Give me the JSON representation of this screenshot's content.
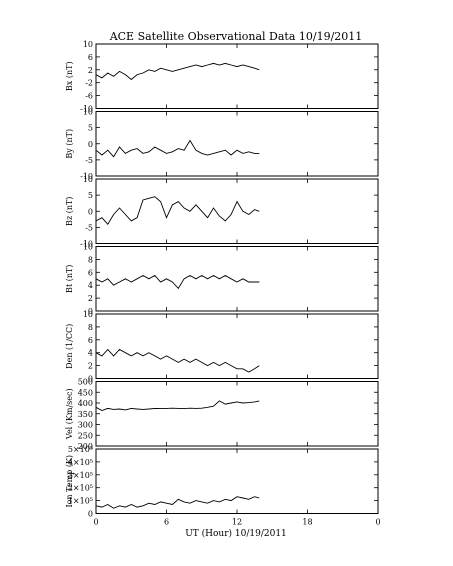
{
  "chart_data": {
    "title": "ACE Satellite Observational Data   10/19/2011",
    "xlabel": "UT (Hour)   10/19/2011",
    "x_ticks": [
      "0",
      "6",
      "12",
      "18",
      "0"
    ],
    "x_range": [
      0,
      24
    ],
    "panels": [
      {
        "type": "line",
        "ylabel": "Bx (nT)",
        "ylim": [
          -10,
          10
        ],
        "yticks": [
          "10",
          "6",
          "2",
          "-2",
          "-6",
          "-10"
        ],
        "ytick_values": [
          10,
          6,
          2,
          -2,
          -6,
          -10
        ],
        "x": [
          0,
          0.5,
          1,
          1.5,
          2,
          2.5,
          3,
          3.5,
          4,
          4.5,
          5,
          5.5,
          6,
          6.5,
          7,
          7.5,
          8,
          8.5,
          9,
          9.5,
          10,
          10.5,
          11,
          11.5,
          12,
          12.5,
          13,
          13.5,
          13.9
        ],
        "values": [
          0.5,
          -0.5,
          1,
          0,
          1.5,
          0.5,
          -1,
          0.5,
          1,
          2,
          1.5,
          2.5,
          2,
          1.5,
          2,
          2.5,
          3,
          3.5,
          3,
          3.5,
          4,
          3.5,
          4,
          3.5,
          3,
          3.5,
          3,
          2.5,
          2
        ]
      },
      {
        "type": "line",
        "ylabel": "By (nT)",
        "ylim": [
          -10,
          10
        ],
        "yticks": [
          "10",
          "5",
          "0",
          "-5",
          "-10"
        ],
        "ytick_values": [
          10,
          5,
          0,
          -5,
          -10
        ],
        "x": [
          0,
          0.5,
          1,
          1.5,
          2,
          2.5,
          3,
          3.5,
          4,
          4.5,
          5,
          5.5,
          6,
          6.5,
          7,
          7.5,
          8,
          8.5,
          9,
          9.5,
          10,
          10.5,
          11,
          11.5,
          12,
          12.5,
          13,
          13.5,
          13.9
        ],
        "values": [
          -2,
          -3.5,
          -2,
          -4,
          -1,
          -3,
          -2,
          -1.5,
          -3,
          -2.5,
          -1,
          -2,
          -3,
          -2.5,
          -1.5,
          -2,
          1,
          -2,
          -3,
          -3.5,
          -3,
          -2.5,
          -2,
          -3.5,
          -2,
          -3,
          -2.5,
          -3,
          -3
        ]
      },
      {
        "type": "line",
        "ylabel": "Bz (nT)",
        "ylim": [
          -10,
          10
        ],
        "yticks": [
          "10",
          "5",
          "0",
          "-5",
          "-10"
        ],
        "ytick_values": [
          10,
          5,
          0,
          -5,
          -10
        ],
        "x": [
          0,
          0.5,
          1,
          1.5,
          2,
          2.5,
          3,
          3.5,
          4,
          4.5,
          5,
          5.5,
          6,
          6.5,
          7,
          7.5,
          8,
          8.5,
          9,
          9.5,
          10,
          10.5,
          11,
          11.5,
          12,
          12.5,
          13,
          13.5,
          13.9
        ],
        "values": [
          -3,
          -2,
          -4,
          -1,
          1,
          -1,
          -3,
          -2,
          3.5,
          4,
          4.5,
          3,
          -2,
          2,
          3,
          1,
          0,
          2,
          0,
          -2,
          1,
          -1.5,
          -3,
          -1,
          3,
          0,
          -1,
          0.5,
          0
        ]
      },
      {
        "type": "line",
        "ylabel": "Bt (nT)",
        "ylim": [
          0,
          10
        ],
        "yticks": [
          "10",
          "8",
          "6",
          "4",
          "2",
          "0"
        ],
        "ytick_values": [
          10,
          8,
          6,
          4,
          2,
          0
        ],
        "x": [
          0,
          0.5,
          1,
          1.5,
          2,
          2.5,
          3,
          3.5,
          4,
          4.5,
          5,
          5.5,
          6,
          6.5,
          7,
          7.5,
          8,
          8.5,
          9,
          9.5,
          10,
          10.5,
          11,
          11.5,
          12,
          12.5,
          13,
          13.5,
          13.9
        ],
        "values": [
          5,
          4.5,
          5,
          4,
          4.5,
          5,
          4.5,
          5,
          5.5,
          5,
          5.5,
          4.5,
          5,
          4.5,
          3.5,
          5,
          5.5,
          5,
          5.5,
          5,
          5.5,
          5,
          5.5,
          5,
          4.5,
          5,
          4.5,
          4.5,
          4.5
        ]
      },
      {
        "type": "line",
        "ylabel": "Den (1/CC)",
        "ylim": [
          0,
          10
        ],
        "yticks": [
          "10",
          "8",
          "6",
          "4",
          "2",
          "0"
        ],
        "ytick_values": [
          10,
          8,
          6,
          4,
          2,
          0
        ],
        "x": [
          0,
          0.5,
          1,
          1.5,
          2,
          2.5,
          3,
          3.5,
          4,
          4.5,
          5,
          5.5,
          6,
          6.5,
          7,
          7.5,
          8,
          8.5,
          9,
          9.5,
          10,
          10.5,
          11,
          11.5,
          12,
          12.5,
          13,
          13.5,
          13.9
        ],
        "values": [
          4,
          3.5,
          4.5,
          3.5,
          4.5,
          4,
          3.5,
          4,
          3.5,
          4,
          3.5,
          3,
          3.5,
          3,
          2.5,
          3,
          2.5,
          3,
          2.5,
          2,
          2.5,
          2,
          2.5,
          2,
          1.5,
          1.5,
          1,
          1.5,
          2
        ]
      },
      {
        "type": "line",
        "ylabel": "Vel (Km/sec)",
        "ylim": [
          200,
          500
        ],
        "yticks": [
          "500",
          "450",
          "400",
          "350",
          "300",
          "250",
          "200"
        ],
        "ytick_values": [
          500,
          450,
          400,
          350,
          300,
          250,
          200
        ],
        "x": [
          0,
          0.5,
          1,
          1.5,
          2,
          2.5,
          3,
          3.5,
          4,
          4.5,
          5,
          5.5,
          6,
          6.5,
          7,
          7.5,
          8,
          8.5,
          9,
          9.5,
          10,
          10.5,
          11,
          11.5,
          12,
          12.5,
          13,
          13.5,
          13.9
        ],
        "values": [
          380,
          365,
          375,
          370,
          372,
          368,
          375,
          372,
          370,
          372,
          375,
          374,
          375,
          376,
          375,
          374,
          376,
          375,
          376,
          380,
          385,
          410,
          395,
          400,
          405,
          400,
          402,
          405,
          410
        ]
      },
      {
        "type": "line",
        "ylabel": "Ion Temp (K)",
        "ylim": [
          0,
          500000
        ],
        "yticks": [
          "5×10⁵",
          "4×10⁵",
          "3×10⁵",
          "2×10⁵",
          "1×10⁵",
          "0"
        ],
        "ytick_values": [
          500000,
          400000,
          300000,
          200000,
          100000,
          0
        ],
        "x": [
          0,
          0.5,
          1,
          1.5,
          2,
          2.5,
          3,
          3.5,
          4,
          4.5,
          5,
          5.5,
          6,
          6.5,
          7,
          7.5,
          8,
          8.5,
          9,
          9.5,
          10,
          10.5,
          11,
          11.5,
          12,
          12.5,
          13,
          13.5,
          13.9
        ],
        "values": [
          60000,
          50000,
          70000,
          40000,
          60000,
          50000,
          70000,
          50000,
          60000,
          80000,
          70000,
          90000,
          80000,
          70000,
          110000,
          90000,
          80000,
          100000,
          90000,
          80000,
          100000,
          90000,
          110000,
          100000,
          130000,
          120000,
          110000,
          130000,
          120000
        ]
      }
    ]
  }
}
